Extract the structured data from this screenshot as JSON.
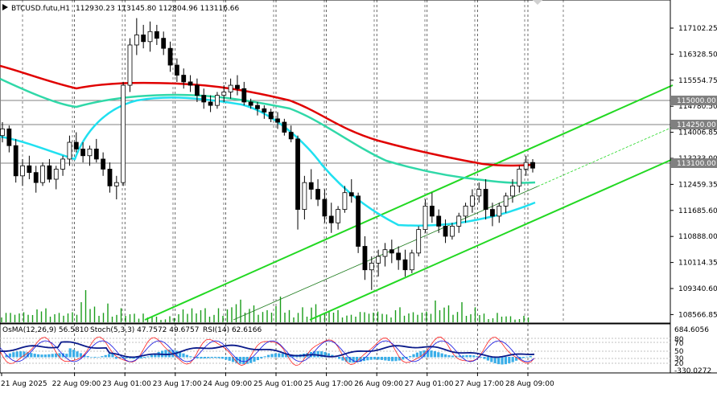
{
  "header": {
    "symbol": "BTCUSD.futu,H1",
    "ohlc": "112930.23 113145.80 112804.96 113116.66"
  },
  "indicator_header": {
    "osma": "OsMA(12,26,9) 56.5810",
    "stoch": "Stoch(5,3,3) 47.7572 49.6757",
    "rsi": "RSI(14) 62.6166"
  },
  "colors": {
    "ma_red": "#e00000",
    "ma_teal": "#30d8a8",
    "ma_cyan": "#20e0f0",
    "channel": "#22d822",
    "candle": "#000000",
    "volume": "#1a9c1a",
    "osma_hist": "#3aaee8",
    "stoch_main": "#ff2020",
    "stoch_signal": "#1010e0",
    "rsi_line": "#0a1a8a",
    "hline": "#808080"
  },
  "chart_data": {
    "type": "candlestick",
    "symbol": "BTCUSD.futu",
    "timeframe": "H1",
    "open": 112930.23,
    "high": 113145.8,
    "low": 112804.96,
    "close": 113116.66,
    "price_axis_ticks": [
      "117102.25",
      "116328.50",
      "115554.75",
      "114780.50",
      "114006.85",
      "113233.00",
      "112459.35",
      "111685.60",
      "110888.00",
      "110114.35",
      "109340.60",
      "108566.85"
    ],
    "price_labels": [
      "115000.00",
      "114250.00",
      "113100.00"
    ],
    "ylim": [
      108566.85,
      117102.25
    ],
    "time_labels": [
      "21 Aug 2025",
      "22 Aug 09:00",
      "23 Aug 01:00",
      "23 Aug 17:00",
      "24 Aug 09:00",
      "25 Aug 01:00",
      "25 Aug 17:00",
      "26 Aug 09:00",
      "27 Aug 01:00",
      "27 Aug 17:00",
      "28 Aug 09:00"
    ],
    "candles": [
      [
        113900,
        114300,
        113700,
        114100
      ],
      [
        114100,
        114200,
        113400,
        113600
      ],
      [
        113600,
        113800,
        112500,
        112700
      ],
      [
        112700,
        113200,
        112400,
        113000
      ],
      [
        113000,
        113300,
        112600,
        112800
      ],
      [
        112800,
        113000,
        112200,
        112500
      ],
      [
        112500,
        113100,
        112400,
        113000
      ],
      [
        113000,
        113200,
        112500,
        112600
      ],
      [
        112600,
        113000,
        112300,
        112900
      ],
      [
        112900,
        113300,
        112700,
        113200
      ],
      [
        113200,
        113900,
        113000,
        113700
      ],
      [
        113700,
        114000,
        113400,
        113500
      ],
      [
        113500,
        113700,
        113100,
        113300
      ],
      [
        113300,
        113600,
        113000,
        113500
      ],
      [
        113500,
        113800,
        113100,
        113200
      ],
      [
        113200,
        113400,
        112700,
        112900
      ],
      [
        112900,
        113100,
        112200,
        112400
      ],
      [
        112400,
        112700,
        112000,
        112500
      ],
      [
        112500,
        115500,
        112400,
        115400
      ],
      [
        115400,
        116800,
        115200,
        116600
      ],
      [
        116600,
        117400,
        116300,
        116900
      ],
      [
        116900,
        117200,
        116500,
        116700
      ],
      [
        116700,
        117300,
        116400,
        117000
      ],
      [
        117000,
        117200,
        116600,
        116800
      ],
      [
        116800,
        117000,
        116300,
        116500
      ],
      [
        116500,
        116700,
        115800,
        116000
      ],
      [
        116000,
        116200,
        115500,
        115700
      ],
      [
        115700,
        115900,
        115300,
        115500
      ],
      [
        115500,
        115700,
        115200,
        115400
      ],
      [
        115400,
        115600,
        114900,
        115100
      ],
      [
        115100,
        115300,
        114700,
        114900
      ],
      [
        114900,
        115100,
        114600,
        114800
      ],
      [
        114800,
        115200,
        114700,
        115100
      ],
      [
        115100,
        115400,
        114900,
        115200
      ],
      [
        115200,
        115600,
        115000,
        115400
      ],
      [
        115400,
        115700,
        115100,
        115300
      ],
      [
        115300,
        115500,
        114800,
        114900
      ],
      [
        114900,
        115000,
        114700,
        114800
      ],
      [
        114800,
        114900,
        114500,
        114700
      ],
      [
        114700,
        114800,
        114400,
        114600
      ],
      [
        114600,
        114700,
        114300,
        114400
      ],
      [
        114400,
        114600,
        114100,
        114300
      ],
      [
        114300,
        114400,
        113900,
        114000
      ],
      [
        114000,
        114200,
        113700,
        113800
      ],
      [
        113800,
        113900,
        111100,
        111700
      ],
      [
        111700,
        112700,
        111400,
        112500
      ],
      [
        112500,
        112900,
        112000,
        112300
      ],
      [
        112300,
        112600,
        111800,
        112000
      ],
      [
        112000,
        112300,
        111300,
        111500
      ],
      [
        111500,
        111900,
        111000,
        111300
      ],
      [
        111300,
        111800,
        111100,
        111700
      ],
      [
        111700,
        112400,
        111600,
        112200
      ],
      [
        112200,
        112600,
        111900,
        112100
      ],
      [
        112100,
        112200,
        110400,
        110600
      ],
      [
        110600,
        110900,
        109600,
        109900
      ],
      [
        109900,
        110300,
        109300,
        110100
      ],
      [
        110100,
        110500,
        109700,
        110300
      ],
      [
        110300,
        110700,
        110000,
        110500
      ],
      [
        110500,
        110800,
        110100,
        110400
      ],
      [
        110400,
        110600,
        109900,
        110200
      ],
      [
        110200,
        110500,
        109700,
        109900
      ],
      [
        109900,
        110500,
        109800,
        110400
      ],
      [
        110400,
        111200,
        110300,
        111100
      ],
      [
        111100,
        112000,
        111000,
        111800
      ],
      [
        111800,
        112200,
        111300,
        111500
      ],
      [
        111500,
        111700,
        111000,
        111200
      ],
      [
        111200,
        111400,
        110700,
        110900
      ],
      [
        110900,
        111300,
        110800,
        111200
      ],
      [
        111200,
        111600,
        111000,
        111500
      ],
      [
        111500,
        111900,
        111300,
        111800
      ],
      [
        111800,
        112300,
        111600,
        112100
      ],
      [
        112100,
        112500,
        111900,
        112300
      ],
      [
        112300,
        112600,
        111400,
        111700
      ],
      [
        111700,
        111900,
        111200,
        111500
      ],
      [
        111500,
        111900,
        111300,
        111800
      ],
      [
        111800,
        112200,
        111600,
        112100
      ],
      [
        112100,
        112600,
        111900,
        112400
      ],
      [
        112400,
        113000,
        112200,
        112900
      ],
      [
        112900,
        113300,
        112700,
        113100
      ],
      [
        113100,
        113200,
        112800,
        112930
      ]
    ]
  }
}
